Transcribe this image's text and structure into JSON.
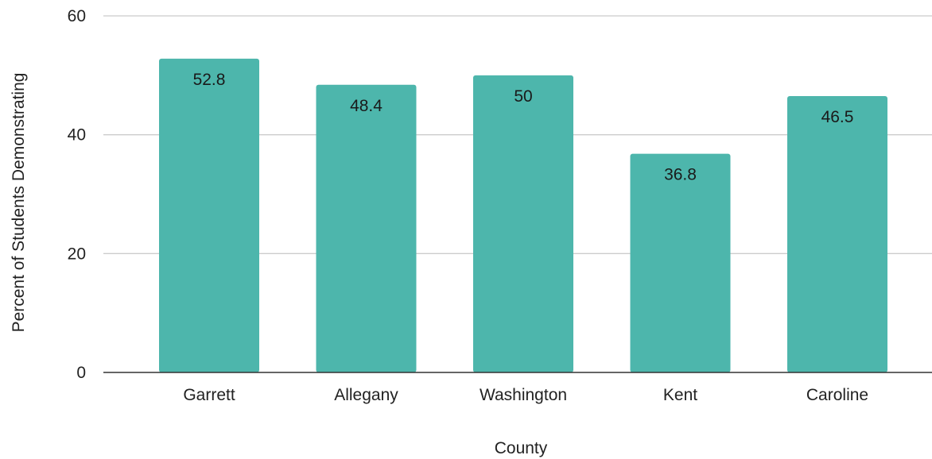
{
  "chart_data": {
    "type": "bar",
    "title": "",
    "xlabel": "County",
    "ylabel": "Percent of Students Demonstrating",
    "categories": [
      "Garrett",
      "Allegany",
      "Washington",
      "Kent",
      "Caroline"
    ],
    "values": [
      52.8,
      48.4,
      50,
      36.8,
      46.5
    ],
    "data_labels": [
      "52.8",
      "48.4",
      "50",
      "36.8",
      "46.5"
    ],
    "ylim": [
      0,
      60
    ],
    "yticks": [
      0,
      20,
      40,
      60
    ],
    "grid": true,
    "legend": "none",
    "colors": {
      "bar": "#4db6ac",
      "grid": "#cccccc",
      "baseline": "#333333"
    }
  }
}
